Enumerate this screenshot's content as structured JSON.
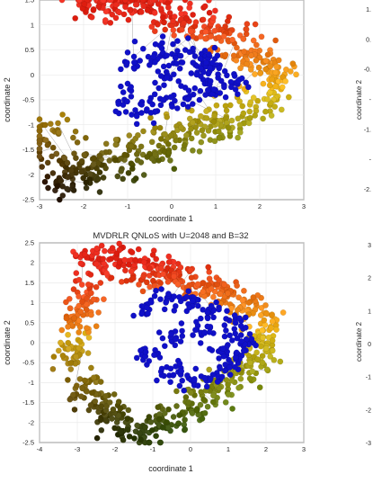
{
  "chart_data": [
    {
      "type": "scatter",
      "title": "",
      "xlabel": "coordinate 1",
      "ylabel": "coordinate 2",
      "xlim": [
        -3,
        3
      ],
      "ylim": [
        -2.5,
        1.5
      ],
      "xticks": [
        "-3",
        "-2",
        "-1",
        "0",
        "1",
        "2",
        "3"
      ],
      "yticks": [
        "-2.5",
        "-2",
        "-1.5",
        "-1",
        "-0.5",
        "0",
        "0.5",
        "1",
        "1.5"
      ],
      "grid": true,
      "seed": 11,
      "series": [
        {
          "color_role": "gradient",
          "points": [
            [
              -1.8,
              1.5
            ],
            [
              -1.4,
              1.45
            ],
            [
              -1.0,
              1.4
            ],
            [
              -0.5,
              1.4
            ],
            [
              0.0,
              1.2
            ],
            [
              0.6,
              1.0
            ],
            [
              1.1,
              0.8
            ],
            [
              1.6,
              0.55
            ],
            [
              2.1,
              0.2
            ],
            [
              2.4,
              -0.1
            ],
            [
              1.9,
              -0.6
            ],
            [
              1.3,
              -0.9
            ],
            [
              0.8,
              -1.1
            ],
            [
              0.2,
              -1.3
            ],
            [
              -0.4,
              -1.4
            ],
            [
              -1.0,
              -1.6
            ],
            [
              -1.6,
              -1.8
            ],
            [
              -2.2,
              -1.95
            ],
            [
              -2.5,
              -2.0
            ],
            [
              -2.8,
              -1.3
            ]
          ]
        },
        {
          "color_role": "blue",
          "points": [
            [
              -0.8,
              0.3
            ],
            [
              -0.3,
              0.45
            ],
            [
              0.2,
              0.5
            ],
            [
              0.7,
              0.3
            ],
            [
              1.1,
              0.05
            ],
            [
              1.4,
              -0.2
            ],
            [
              0.9,
              -0.35
            ],
            [
              0.4,
              -0.4
            ],
            [
              -0.1,
              -0.5
            ],
            [
              -0.6,
              -0.7
            ],
            [
              -1.0,
              -0.5
            ],
            [
              0.0,
              0.0
            ],
            [
              0.6,
              0.1
            ]
          ]
        }
      ]
    },
    {
      "type": "scatter",
      "title": "MVDRLR QNLoS with U=2048 and B=32",
      "xlabel": "coordinate 1",
      "ylabel": "coordinate 2",
      "xlim": [
        -4,
        3
      ],
      "ylim": [
        -2.5,
        2.5
      ],
      "xticks": [
        "-4",
        "-3",
        "-2",
        "-1",
        "0",
        "1",
        "2",
        "3"
      ],
      "yticks": [
        "-2.5",
        "-2",
        "-1.5",
        "-1",
        "-0.5",
        "0",
        "0.5",
        "1",
        "1.5",
        "2",
        "2.5"
      ],
      "grid": true,
      "seed": 29,
      "series": [
        {
          "color_role": "gradient",
          "points": [
            [
              -2.6,
              2.0
            ],
            [
              -2.0,
              2.1
            ],
            [
              -1.4,
              1.95
            ],
            [
              -0.8,
              1.8
            ],
            [
              -0.2,
              1.6
            ],
            [
              0.4,
              1.4
            ],
            [
              1.0,
              1.15
            ],
            [
              1.6,
              0.8
            ],
            [
              2.0,
              0.3
            ],
            [
              1.9,
              -0.3
            ],
            [
              1.4,
              -0.8
            ],
            [
              0.7,
              -1.2
            ],
            [
              0.1,
              -1.6
            ],
            [
              -0.6,
              -2.0
            ],
            [
              -1.2,
              -2.2
            ],
            [
              -1.8,
              -2.0
            ],
            [
              -2.3,
              -1.6
            ],
            [
              -2.8,
              -1.1
            ],
            [
              -3.2,
              -0.3
            ],
            [
              -3.0,
              0.5
            ],
            [
              -2.8,
              1.2
            ]
          ]
        },
        {
          "color_role": "blue",
          "points": [
            [
              -1.2,
              0.9
            ],
            [
              -0.6,
              1.05
            ],
            [
              0.0,
              1.0
            ],
            [
              0.6,
              0.8
            ],
            [
              1.1,
              0.5
            ],
            [
              1.4,
              0.0
            ],
            [
              1.1,
              -0.5
            ],
            [
              0.6,
              -0.8
            ],
            [
              0.0,
              -0.9
            ],
            [
              -0.6,
              -0.7
            ],
            [
              -1.1,
              -0.3
            ],
            [
              -0.5,
              0.2
            ],
            [
              0.3,
              0.3
            ],
            [
              0.9,
              -0.1
            ]
          ]
        }
      ]
    }
  ],
  "partial_right_panels": [
    {
      "yticks": [
        "1.",
        "0.",
        "-0.",
        "-",
        "-1.",
        "-",
        "-2."
      ],
      "ylabel": "coordinate 2"
    },
    {
      "yticks": [
        "3",
        "2",
        "1",
        "0",
        "-1",
        "-2",
        "-3"
      ],
      "ylabel": "coordinate 2"
    }
  ],
  "colors": {
    "blue": "#1010c8",
    "gradient_top": "#e8281a",
    "gradient_mid": "#f5c21a",
    "gradient_low": "#3c8c14",
    "gradient_dark": "#2a1208",
    "link_line": "#262626",
    "grid": "#e6e6e6",
    "axis": "#262626"
  }
}
